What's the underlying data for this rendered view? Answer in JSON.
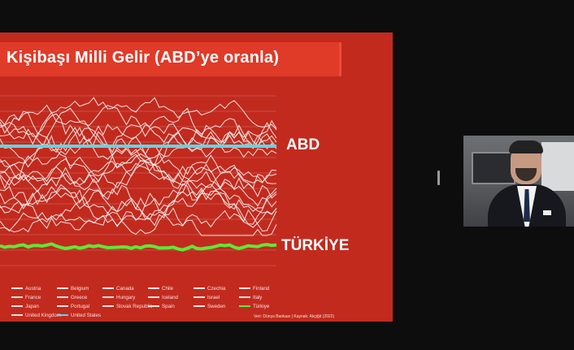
{
  "slide": {
    "title": "Kişibaşı Milli Gelir (ABD’ye oranla)",
    "label_abd": "ABD",
    "label_turkiye": "TÜRKİYE",
    "source": "Veri: Dünya Bankası  |  Kaynak: Akçiğit (2022)"
  },
  "chart_data": {
    "type": "line",
    "title": "Kişibaşı Milli Gelir (ABD’ye oranla)",
    "legend": [
      "Austria",
      "Belgium",
      "Canada",
      "Chile",
      "Czechia",
      "Finland",
      "France",
      "Greece",
      "Hungary",
      "Iceland",
      "Israel",
      "Italy",
      "Japan",
      "Portugal",
      "Slovak Republic",
      "Spain",
      "Sweden",
      "Türkiye",
      "United Kingdom",
      "United States"
    ],
    "highlight_series": [
      {
        "name": "United States",
        "color": "#5fd6e6"
      },
      {
        "name": "Türkiye",
        "color": "#5ee83a"
      }
    ],
    "grid": true,
    "legend_placement": "bottom"
  },
  "colors": {
    "slide_bg": "#c22a1e",
    "title_bar": "#e03a28",
    "abd_line": "#5fd6e6",
    "turkiye_line": "#5ee83a",
    "other_lines": "#f4f1ef"
  }
}
